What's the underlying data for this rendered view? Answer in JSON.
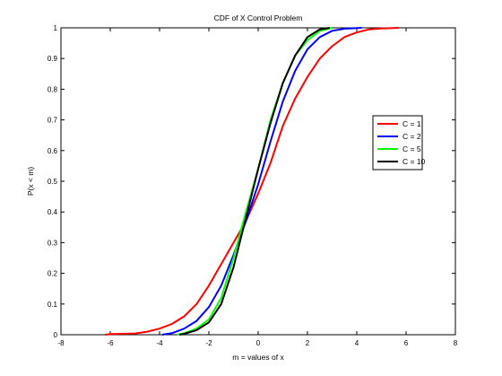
{
  "chart_data": {
    "type": "line",
    "title": "CDF of X Control Problem",
    "xlabel": "m = values of x",
    "ylabel": "P(x < m)",
    "xlim": [
      -8,
      8
    ],
    "ylim": [
      0,
      1
    ],
    "xticks": [
      "-8",
      "-6",
      "-4",
      "-2",
      "0",
      "2",
      "4",
      "6",
      "8"
    ],
    "yticks": [
      "0",
      "0.1",
      "0.2",
      "0.3",
      "0.4",
      "0.5",
      "0.6",
      "0.7",
      "0.8",
      "0.9",
      "1"
    ],
    "grid": false,
    "legend_position": "right",
    "series": [
      {
        "name": "C = 1",
        "color": "#ff0000",
        "points": [
          [
            -6.2,
            0
          ],
          [
            -6.0,
            0.002
          ],
          [
            -5.0,
            0.004
          ],
          [
            -4.5,
            0.01
          ],
          [
            -4.0,
            0.02
          ],
          [
            -3.5,
            0.035
          ],
          [
            -3.0,
            0.06
          ],
          [
            -2.5,
            0.1
          ],
          [
            -2.0,
            0.16
          ],
          [
            -1.5,
            0.23
          ],
          [
            -1.0,
            0.3
          ],
          [
            -0.5,
            0.37
          ],
          [
            0,
            0.46
          ],
          [
            0.5,
            0.56
          ],
          [
            1.0,
            0.68
          ],
          [
            1.5,
            0.77
          ],
          [
            2.0,
            0.84
          ],
          [
            2.5,
            0.9
          ],
          [
            3.0,
            0.94
          ],
          [
            3.5,
            0.97
          ],
          [
            4.0,
            0.985
          ],
          [
            4.5,
            0.995
          ],
          [
            5.0,
            0.998
          ],
          [
            5.7,
            1.0
          ]
        ]
      },
      {
        "name": "C = 2",
        "color": "#0000ff",
        "points": [
          [
            -3.9,
            0
          ],
          [
            -3.5,
            0.005
          ],
          [
            -3.0,
            0.02
          ],
          [
            -2.5,
            0.045
          ],
          [
            -2.0,
            0.09
          ],
          [
            -1.5,
            0.16
          ],
          [
            -1.0,
            0.26
          ],
          [
            -0.5,
            0.37
          ],
          [
            0,
            0.49
          ],
          [
            0.5,
            0.63
          ],
          [
            1.0,
            0.76
          ],
          [
            1.5,
            0.86
          ],
          [
            2.0,
            0.93
          ],
          [
            2.5,
            0.97
          ],
          [
            3.0,
            0.99
          ],
          [
            3.5,
            0.997
          ],
          [
            4.2,
            1.0
          ]
        ]
      },
      {
        "name": "C = 5",
        "color": "#00ff00",
        "points": [
          [
            -3.3,
            0
          ],
          [
            -3.0,
            0.005
          ],
          [
            -2.5,
            0.02
          ],
          [
            -2.0,
            0.05
          ],
          [
            -1.5,
            0.12
          ],
          [
            -1.0,
            0.25
          ],
          [
            -0.5,
            0.4
          ],
          [
            0,
            0.54
          ],
          [
            0.5,
            0.7
          ],
          [
            1.0,
            0.82
          ],
          [
            1.5,
            0.91
          ],
          [
            2.0,
            0.96
          ],
          [
            2.5,
            0.99
          ],
          [
            3.0,
            1.0
          ]
        ]
      },
      {
        "name": "C = 10",
        "color": "#000000",
        "points": [
          [
            -3.2,
            0
          ],
          [
            -3.0,
            0.003
          ],
          [
            -2.5,
            0.015
          ],
          [
            -2.0,
            0.04
          ],
          [
            -1.5,
            0.1
          ],
          [
            -1.0,
            0.22
          ],
          [
            -0.5,
            0.38
          ],
          [
            0,
            0.54
          ],
          [
            0.5,
            0.69
          ],
          [
            1.0,
            0.82
          ],
          [
            1.5,
            0.91
          ],
          [
            2.0,
            0.97
          ],
          [
            2.5,
            0.995
          ],
          [
            2.9,
            1.0
          ]
        ]
      }
    ]
  }
}
